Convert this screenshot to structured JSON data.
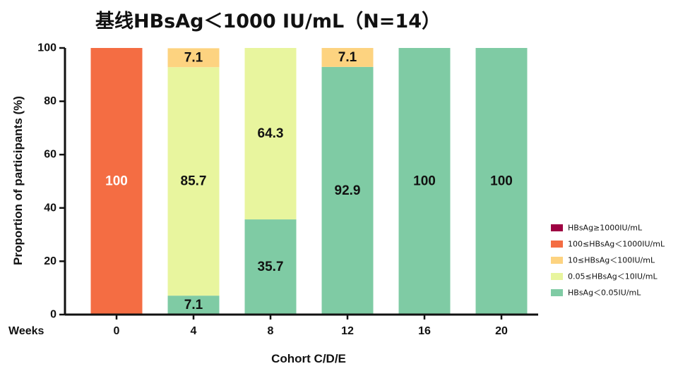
{
  "chart_data": {
    "type": "bar",
    "stacked": true,
    "title": "基线HBsAg＜1000 IU/mL（N=14）",
    "xlabel": "Cohort C/D/E",
    "ylabel": "Proportion of participants (%)",
    "x_prefix_label": "Weeks",
    "categories": [
      "0",
      "4",
      "8",
      "12",
      "16",
      "20"
    ],
    "ylim": [
      0,
      100
    ],
    "yticks": [
      "0",
      "20",
      "40",
      "60",
      "80",
      "100"
    ],
    "grid": false,
    "legend_position": "right",
    "series": [
      {
        "name": "HBsAg＜0.05IU/mL",
        "color": "#7fcba4",
        "values": [
          0,
          7.1,
          35.7,
          92.9,
          100,
          100
        ],
        "labels": [
          "",
          "7.1",
          "35.7",
          "92.9",
          "100",
          "100"
        ],
        "label_color": "#111111"
      },
      {
        "name": "0.05≤HBsAg＜10IU/mL",
        "color": "#e8f59e",
        "values": [
          0,
          85.7,
          64.3,
          0,
          0,
          0
        ],
        "labels": [
          "",
          "85.7",
          "64.3",
          "",
          "",
          ""
        ],
        "label_color": "#111111"
      },
      {
        "name": "10≤HBsAg＜100IU/mL",
        "color": "#fdd380",
        "values": [
          0,
          7.1,
          0,
          7.1,
          0,
          0
        ],
        "labels": [
          "",
          "7.1",
          "",
          "7.1",
          "",
          ""
        ],
        "label_color": "#111111"
      },
      {
        "name": "100≤HBsAg＜1000IU/mL",
        "color": "#f46d43",
        "values": [
          100,
          0,
          0,
          0,
          0,
          0
        ],
        "labels": [
          "100",
          "",
          "",
          "",
          "",
          ""
        ],
        "label_color": "#ffffff"
      },
      {
        "name": "HBsAg≥1000IU/mL",
        "color": "#9e0142",
        "values": [
          0,
          0,
          0,
          0,
          0,
          0
        ],
        "labels": [
          "",
          "",
          "",
          "",
          "",
          ""
        ],
        "label_color": "#ffffff"
      }
    ],
    "legend_order": [
      "HBsAg≥1000IU/mL",
      "100≤HBsAg＜1000IU/mL",
      "10≤HBsAg＜100IU/mL",
      "0.05≤HBsAg＜10IU/mL",
      "HBsAg＜0.05IU/mL"
    ]
  }
}
